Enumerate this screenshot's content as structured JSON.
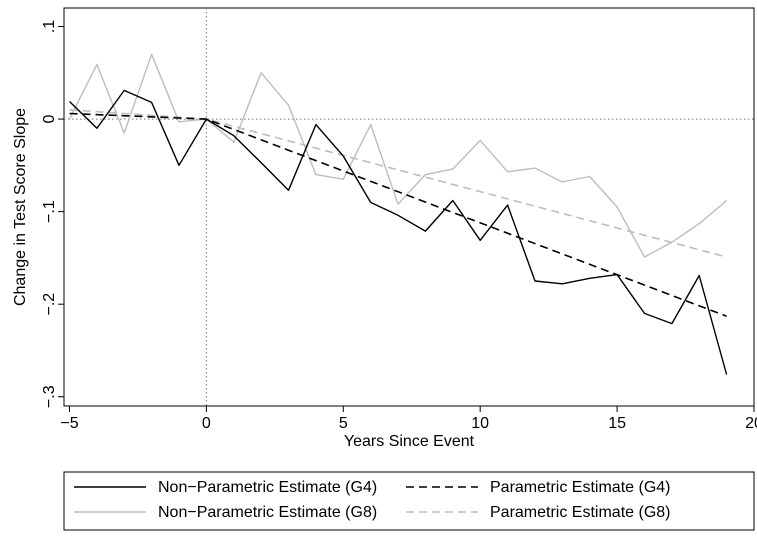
{
  "chart_data": {
    "type": "line",
    "title": "",
    "xlabel": "Years Since Event",
    "ylabel": "Change in Test Score Slope",
    "xlim": [
      -5.2,
      20
    ],
    "ylim": [
      -0.31,
      0.12
    ],
    "xticks": [
      -5,
      0,
      5,
      10,
      15,
      20
    ],
    "xtick_labels": [
      "−5",
      "0",
      "5",
      "10",
      "15",
      "20"
    ],
    "yticks": [
      0.1,
      0,
      -0.1,
      -0.2,
      -0.3
    ],
    "ytick_labels": [
      ".1",
      "0",
      "−.1",
      "−.2",
      "−.3"
    ],
    "reference_lines": {
      "x": 0,
      "y": 0
    },
    "grid": false,
    "legend_position": "bottom",
    "legend": [
      "Non−Parametric Estimate (G4)",
      "Parametric Estimate (G4)",
      "Non−Parametric Estimate (G8)",
      "Parametric Estimate (G8)"
    ],
    "series": [
      {
        "name": "Non−Parametric Estimate (G4)",
        "color": "#000000",
        "dash": "solid",
        "x": [
          -5,
          -4,
          -3,
          -2,
          -1,
          0,
          1,
          2,
          3,
          4,
          5,
          6,
          7,
          8,
          9,
          10,
          11,
          12,
          13,
          14,
          15,
          16,
          17,
          18,
          19
        ],
        "y": [
          0.019,
          -0.01,
          0.031,
          0.018,
          -0.05,
          0.0,
          -0.018,
          -0.047,
          -0.077,
          -0.006,
          -0.04,
          -0.09,
          -0.104,
          -0.121,
          -0.088,
          -0.131,
          -0.093,
          -0.175,
          -0.178,
          -0.172,
          -0.168,
          -0.21,
          -0.221,
          -0.169,
          -0.276
        ]
      },
      {
        "name": "Parametric Estimate (G4)",
        "color": "#000000",
        "dash": "dashed",
        "x": [
          -5,
          0,
          19
        ],
        "y": [
          0.006,
          0.0,
          -0.213
        ]
      },
      {
        "name": "Non−Parametric Estimate (G8)",
        "color": "#bdbdbd",
        "dash": "solid",
        "x": [
          -5,
          -4,
          -3,
          -2,
          -1,
          0,
          1,
          2,
          3,
          4,
          5,
          6,
          7,
          8,
          9,
          10,
          11,
          12,
          13,
          14,
          15,
          16,
          17,
          18,
          19
        ],
        "y": [
          0.0,
          0.059,
          -0.015,
          0.07,
          -0.003,
          0.0,
          -0.025,
          0.05,
          0.015,
          -0.06,
          -0.065,
          -0.006,
          -0.092,
          -0.06,
          -0.054,
          -0.023,
          -0.057,
          -0.053,
          -0.068,
          -0.062,
          -0.095,
          -0.149,
          -0.133,
          -0.113,
          -0.088
        ]
      },
      {
        "name": "Parametric Estimate (G8)",
        "color": "#bdbdbd",
        "dash": "dashed",
        "x": [
          -5,
          0,
          19
        ],
        "y": [
          0.01,
          0.0,
          -0.149
        ]
      }
    ]
  }
}
